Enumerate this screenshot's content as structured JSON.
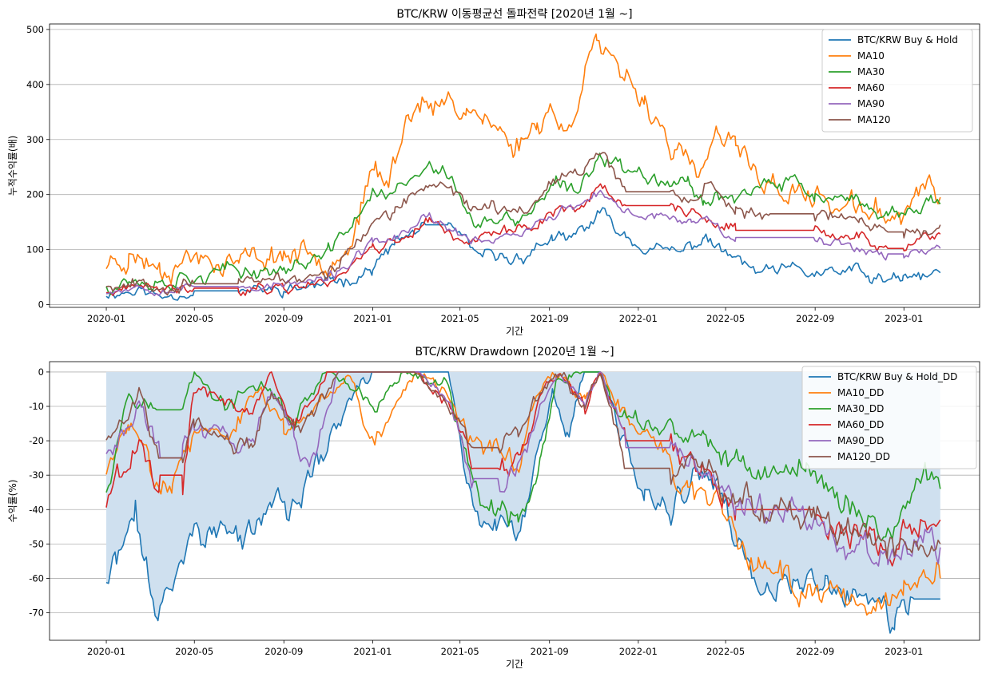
{
  "chart_data": [
    {
      "type": "line",
      "title": "BTC/KRW 이동평균선 돌파전략 [2020년 1월 ~]",
      "xlabel": "기간",
      "ylabel": "누적수익률(배)",
      "xlim": [
        "2019-10-15",
        "2023-04-15"
      ],
      "ylim": [
        -5,
        510
      ],
      "yticks": [
        0,
        100,
        200,
        300,
        400,
        500
      ],
      "xticks": [
        "2020-01",
        "2020-05",
        "2020-09",
        "2021-01",
        "2021-05",
        "2021-09",
        "2022-01",
        "2022-05",
        "2022-09",
        "2023-01"
      ],
      "grid": "y",
      "legend_position": "top-right",
      "series": [
        {
          "name": "BTC/KRW Buy & Hold",
          "color": "#1f77b4",
          "x": [
            "2020-01-01",
            "2020-02-15",
            "2020-03-15",
            "2020-05-01",
            "2020-07-01",
            "2020-09-01",
            "2020-11-01",
            "2021-01-01",
            "2021-02-01",
            "2021-03-15",
            "2021-04-15",
            "2021-05-20",
            "2021-07-15",
            "2021-09-05",
            "2021-09-25",
            "2021-11-10",
            "2021-12-15",
            "2022-01-20",
            "2022-03-01",
            "2022-04-01",
            "2022-05-15",
            "2022-06-20",
            "2022-08-01",
            "2022-09-15",
            "2022-11-01",
            "2022-11-15",
            "2022-12-31",
            "2023-02-20"
          ],
          "values": [
            20,
            27,
            15,
            25,
            25,
            26,
            38,
            65,
            110,
            145,
            145,
            90,
            80,
            122,
            110,
            165,
            125,
            100,
            92,
            122,
            80,
            55,
            62,
            55,
            60,
            47,
            43,
            58
          ]
        },
        {
          "name": "MA10",
          "color": "#ff7f0e",
          "x": [
            "2020-01-01",
            "2020-02-01",
            "2020-03-15",
            "2020-05-01",
            "2020-07-01",
            "2020-09-01",
            "2020-11-01",
            "2020-12-01",
            "2021-01-05",
            "2021-01-20",
            "2021-02-20",
            "2021-03-10",
            "2021-03-25",
            "2021-04-15",
            "2021-05-10",
            "2021-06-01",
            "2021-07-15",
            "2021-08-15",
            "2021-09-05",
            "2021-09-25",
            "2021-10-20",
            "2021-11-05",
            "2021-11-25",
            "2022-01-10",
            "2022-02-20",
            "2022-03-25",
            "2022-04-20",
            "2022-05-15",
            "2022-06-20",
            "2022-07-20",
            "2022-09-01",
            "2022-10-15",
            "2022-12-01",
            "2022-12-31",
            "2023-01-15",
            "2023-02-20"
          ],
          "values": [
            75,
            92,
            72,
            88,
            78,
            95,
            88,
            115,
            245,
            210,
            350,
            385,
            345,
            370,
            360,
            345,
            285,
            330,
            365,
            300,
            440,
            485,
            425,
            375,
            280,
            230,
            305,
            280,
            230,
            205,
            195,
            175,
            165,
            158,
            210,
            195
          ]
        },
        {
          "name": "MA30",
          "color": "#2ca02c",
          "x": [
            "2020-01-01",
            "2020-02-01",
            "2020-03-15",
            "2020-05-01",
            "2020-07-01",
            "2020-09-01",
            "2020-11-01",
            "2021-01-01",
            "2021-02-01",
            "2021-03-20",
            "2021-04-20",
            "2021-05-20",
            "2021-07-20",
            "2021-09-10",
            "2021-10-10",
            "2021-11-10",
            "2021-12-15",
            "2022-02-01",
            "2022-03-10",
            "2022-04-01",
            "2022-05-15",
            "2022-06-20",
            "2022-08-01",
            "2022-09-01",
            "2022-10-15",
            "2022-12-10",
            "2022-12-31",
            "2023-02-01",
            "2023-02-20"
          ],
          "values": [
            35,
            48,
            42,
            55,
            60,
            65,
            90,
            200,
            205,
            245,
            235,
            145,
            150,
            215,
            200,
            280,
            245,
            235,
            220,
            195,
            200,
            210,
            220,
            200,
            182,
            168,
            165,
            190,
            185
          ]
        },
        {
          "name": "MA60",
          "color": "#d62728",
          "x": [
            "2020-01-01",
            "2020-02-15",
            "2020-04-01",
            "2020-05-01",
            "2020-07-01",
            "2020-09-01",
            "2020-11-01",
            "2021-01-01",
            "2021-02-01",
            "2021-03-20",
            "2021-05-01",
            "2021-06-01",
            "2021-08-01",
            "2021-09-15",
            "2021-10-20",
            "2021-11-10",
            "2021-12-15",
            "2022-02-15",
            "2022-03-15",
            "2022-04-05",
            "2022-05-15",
            "2022-07-01",
            "2022-09-01",
            "2022-10-01",
            "2022-11-01",
            "2022-12-10",
            "2023-01-01",
            "2023-02-20"
          ],
          "values": [
            20,
            30,
            25,
            30,
            30,
            32,
            42,
            105,
            115,
            155,
            120,
            122,
            140,
            175,
            185,
            215,
            180,
            180,
            165,
            150,
            135,
            135,
            135,
            120,
            125,
            102,
            102,
            128
          ]
        },
        {
          "name": "MA90",
          "color": "#9467bd",
          "x": [
            "2020-01-01",
            "2020-02-15",
            "2020-04-01",
            "2020-05-01",
            "2020-07-01",
            "2020-09-01",
            "2020-11-01",
            "2021-01-01",
            "2021-02-01",
            "2021-03-20",
            "2021-05-01",
            "2021-06-01",
            "2021-08-01",
            "2021-09-15",
            "2021-10-20",
            "2021-11-10",
            "2021-12-15",
            "2022-02-15",
            "2022-03-15",
            "2022-04-05",
            "2022-05-15",
            "2022-07-01",
            "2022-09-01",
            "2022-10-01",
            "2022-11-01",
            "2022-12-10",
            "2023-01-01",
            "2023-02-20"
          ],
          "values": [
            25,
            35,
            28,
            33,
            33,
            35,
            45,
            110,
            120,
            160,
            122,
            118,
            135,
            170,
            182,
            200,
            165,
            160,
            150,
            160,
            122,
            122,
            122,
            110,
            105,
            92,
            92,
            102
          ]
        },
        {
          "name": "MA120",
          "color": "#8c564b",
          "x": [
            "2020-01-01",
            "2020-02-15",
            "2020-04-01",
            "2020-05-01",
            "2020-07-01",
            "2020-09-01",
            "2020-11-01",
            "2021-01-01",
            "2021-02-01",
            "2021-03-20",
            "2021-05-01",
            "2021-06-01",
            "2021-08-01",
            "2021-09-15",
            "2021-10-20",
            "2021-11-10",
            "2021-12-15",
            "2022-02-15",
            "2022-03-15",
            "2022-04-05",
            "2022-05-15",
            "2022-07-01",
            "2022-09-01",
            "2022-10-01",
            "2022-11-01",
            "2022-12-10",
            "2023-01-01",
            "2023-02-20"
          ],
          "values": [
            38,
            42,
            36,
            38,
            38,
            45,
            55,
            150,
            165,
            220,
            200,
            170,
            175,
            240,
            255,
            280,
            205,
            205,
            200,
            220,
            170,
            165,
            165,
            158,
            152,
            132,
            132,
            145
          ]
        }
      ]
    },
    {
      "type": "line",
      "title": "BTC/KRW Drawdown [2020년 1월 ~]",
      "xlabel": "기간",
      "ylabel": "수익률(%)",
      "xlim": [
        "2019-10-15",
        "2023-04-15"
      ],
      "ylim": [
        -78,
        3
      ],
      "yticks": [
        0,
        -10,
        -20,
        -30,
        -40,
        -50,
        -60,
        -70
      ],
      "xticks": [
        "2020-01",
        "2020-05",
        "2020-09",
        "2021-01",
        "2021-05",
        "2021-09",
        "2022-01",
        "2022-05",
        "2022-09",
        "2023-01"
      ],
      "grid": "y",
      "legend_position": "top-right",
      "fill_series": "BTC/KRW Buy & Hold_DD",
      "fill_color": "#cfe0ef",
      "series": [
        {
          "name": "BTC/KRW Buy & Hold_DD",
          "color": "#1f77b4",
          "x": [
            "2020-01-01",
            "2020-01-15",
            "2020-02-10",
            "2020-03-12",
            "2020-04-01",
            "2020-05-01",
            "2020-06-15",
            "2020-07-20",
            "2020-08-15",
            "2020-09-10",
            "2020-10-10",
            "2020-11-15",
            "2020-12-10",
            "2021-01-01",
            "2021-02-20",
            "2021-04-15",
            "2021-05-10",
            "2021-05-25",
            "2021-06-20",
            "2021-07-20",
            "2021-08-20",
            "2021-09-05",
            "2021-09-25",
            "2021-10-20",
            "2021-11-10",
            "2021-12-01",
            "2022-01-10",
            "2022-02-15",
            "2022-03-30",
            "2022-05-10",
            "2022-06-18",
            "2022-07-15",
            "2022-08-15",
            "2022-09-15",
            "2022-10-20",
            "2022-11-10",
            "2022-12-20",
            "2023-01-15",
            "2023-02-20"
          ],
          "values": [
            -61,
            -55,
            -42,
            -72,
            -60,
            -45,
            -47,
            -48,
            -36,
            -42,
            -30,
            -15,
            -5,
            0,
            0,
            0,
            -30,
            -40,
            -45,
            -50,
            -20,
            -5,
            -20,
            0,
            0,
            -15,
            -35,
            -40,
            -30,
            -45,
            -68,
            -62,
            -60,
            -63,
            -65,
            -66,
            -74,
            -66,
            -66
          ]
        },
        {
          "name": "MA10_DD",
          "color": "#ff7f0e",
          "x": [
            "2020-01-01",
            "2020-02-01",
            "2020-03-01",
            "2020-04-01",
            "2020-05-01",
            "2020-06-15",
            "2020-08-01",
            "2020-09-01",
            "2020-10-20",
            "2020-12-01",
            "2021-01-01",
            "2021-03-01",
            "2021-04-15",
            "2021-05-15",
            "2021-06-20",
            "2021-07-15",
            "2021-08-15",
            "2021-09-10",
            "2021-10-20",
            "2021-11-10",
            "2021-12-20",
            "2022-02-01",
            "2022-03-10",
            "2022-04-15",
            "2022-05-15",
            "2022-06-15",
            "2022-07-20",
            "2022-09-01",
            "2022-10-15",
            "2022-12-01",
            "2023-01-01",
            "2023-02-20"
          ],
          "values": [
            -30,
            -15,
            -25,
            -32,
            -18,
            -20,
            -5,
            -18,
            -8,
            0,
            -20,
            0,
            -5,
            -20,
            -22,
            -30,
            -5,
            0,
            -10,
            0,
            -15,
            -20,
            -35,
            -40,
            -50,
            -55,
            -60,
            -62,
            -65,
            -68,
            -67,
            -60
          ]
        },
        {
          "name": "MA30_DD",
          "color": "#2ca02c",
          "x": [
            "2020-01-01",
            "2020-02-01",
            "2020-03-10",
            "2020-04-15",
            "2020-05-01",
            "2020-06-15",
            "2020-08-01",
            "2020-09-15",
            "2020-11-01",
            "2021-01-01",
            "2021-02-20",
            "2021-04-15",
            "2021-05-20",
            "2021-06-25",
            "2021-07-20",
            "2021-08-20",
            "2021-09-10",
            "2021-10-20",
            "2021-11-10",
            "2021-12-01",
            "2022-01-15",
            "2022-03-01",
            "2022-04-01",
            "2022-05-01",
            "2022-06-15",
            "2022-07-20",
            "2022-08-20",
            "2022-09-25",
            "2022-11-01",
            "2022-12-10",
            "2023-01-15",
            "2023-02-20"
          ],
          "values": [
            -32,
            -5,
            -11,
            -11,
            0,
            -11,
            -3,
            -15,
            0,
            -10,
            0,
            -5,
            -35,
            -44,
            -45,
            -30,
            -5,
            0,
            0,
            -12,
            -15,
            -18,
            -20,
            -25,
            -28,
            -30,
            -26,
            -35,
            -40,
            -49,
            -32,
            -34
          ]
        },
        {
          "name": "MA60_DD",
          "color": "#d62728",
          "x": [
            "2020-01-01",
            "2020-02-15",
            "2020-03-15",
            "2020-04-15",
            "2020-05-01",
            "2020-06-15",
            "2020-07-20",
            "2020-08-15",
            "2020-09-15",
            "2020-11-01",
            "2021-01-01",
            "2021-03-01",
            "2021-04-20",
            "2021-05-20",
            "2021-06-25",
            "2021-07-20",
            "2021-08-25",
            "2021-09-15",
            "2021-10-20",
            "2021-11-10",
            "2021-12-15",
            "2022-02-15",
            "2022-03-15",
            "2022-04-05",
            "2022-05-15",
            "2022-07-01",
            "2022-09-01",
            "2022-10-01",
            "2022-11-15",
            "2022-12-10",
            "2023-01-15",
            "2023-02-20"
          ],
          "values": [
            -38,
            -20,
            -30,
            -30,
            -5,
            -10,
            -11,
            0,
            -16,
            0,
            0,
            0,
            -10,
            -28,
            -28,
            -25,
            -5,
            0,
            -10,
            0,
            -20,
            -20,
            -25,
            -30,
            -40,
            -40,
            -40,
            -45,
            -48,
            -54,
            -41,
            -43
          ]
        },
        {
          "name": "MA90_DD",
          "color": "#9467bd",
          "x": [
            "2020-01-01",
            "2020-02-15",
            "2020-03-15",
            "2020-04-15",
            "2020-05-01",
            "2020-06-15",
            "2020-07-20",
            "2020-08-15",
            "2020-09-15",
            "2020-10-15",
            "2020-11-15",
            "2021-01-01",
            "2021-03-01",
            "2021-04-20",
            "2021-05-20",
            "2021-06-25",
            "2021-07-20",
            "2021-08-25",
            "2021-09-15",
            "2021-10-20",
            "2021-11-10",
            "2021-12-15",
            "2022-02-15",
            "2022-03-15",
            "2022-04-05",
            "2022-05-15",
            "2022-07-01",
            "2022-09-01",
            "2022-10-01",
            "2022-11-15",
            "2022-12-10",
            "2023-01-15",
            "2023-02-20"
          ],
          "values": [
            -23,
            -10,
            -25,
            -25,
            -15,
            -18,
            -20,
            -5,
            -20,
            -23,
            0,
            0,
            0,
            -10,
            -31,
            -31,
            -28,
            -8,
            0,
            -10,
            0,
            -22,
            -22,
            -25,
            -30,
            -38,
            -40,
            -42,
            -48,
            -52,
            -56,
            -50,
            -51
          ]
        },
        {
          "name": "MA120_DD",
          "color": "#8c564b",
          "x": [
            "2020-01-01",
            "2020-02-15",
            "2020-03-15",
            "2020-04-15",
            "2020-05-01",
            "2020-06-15",
            "2020-07-20",
            "2020-08-15",
            "2020-09-15",
            "2020-10-15",
            "2020-11-15",
            "2021-01-01",
            "2021-03-01",
            "2021-04-20",
            "2021-05-20",
            "2021-06-25",
            "2021-07-20",
            "2021-08-25",
            "2021-09-15",
            "2021-10-20",
            "2021-11-10",
            "2021-12-15",
            "2022-02-15",
            "2022-03-15",
            "2022-04-05",
            "2022-05-15",
            "2022-07-01",
            "2022-09-01",
            "2022-10-01",
            "2022-11-15",
            "2022-12-10",
            "2023-01-15",
            "2023-02-20"
          ],
          "values": [
            -20,
            -5,
            -25,
            -25,
            -15,
            -18,
            -22,
            -5,
            -17,
            -12,
            0,
            0,
            0,
            -10,
            -22,
            -22,
            -20,
            -5,
            0,
            -10,
            0,
            -28,
            -28,
            -25,
            -30,
            -38,
            -40,
            -41,
            -45,
            -48,
            -53,
            -48,
            -50
          ]
        }
      ]
    }
  ]
}
